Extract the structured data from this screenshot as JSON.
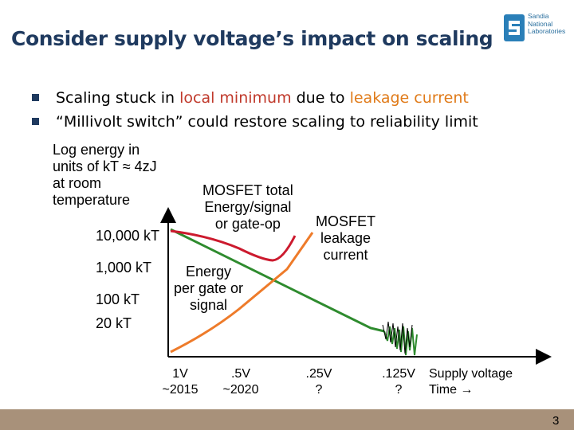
{
  "slide": {
    "title": "Consider supply voltage’s impact on scaling",
    "logo_text": [
      "Sandia",
      "National",
      "Laboratories"
    ],
    "page_number": "3"
  },
  "bullets": [
    {
      "pre": "Scaling stuck in ",
      "red": "local minimum",
      "mid": " due to ",
      "orange": "leakage current"
    },
    {
      "text": "“Millivolt switch” could restore scaling to reliability limit"
    }
  ],
  "chart_data": {
    "type": "line",
    "ylabel": [
      "Log energy in",
      "units of kT ≈ 4zJ",
      "at room",
      "temperature"
    ],
    "y_ticks": [
      "10,000 kT",
      "1,000 kT",
      "100 kT",
      "20 kT"
    ],
    "x_ticks": [
      {
        "top": "1V",
        "bottom": "~2015"
      },
      {
        "top": ".5V",
        "bottom": "~2020"
      },
      {
        "top": ".25V",
        "bottom": "?"
      },
      {
        "top": ".125V",
        "bottom": "?"
      }
    ],
    "xlabel": [
      "Supply voltage",
      "Time →"
    ],
    "series": [
      {
        "name": "MOSFET total Energy/signal or gate-op",
        "color": "#cc1a2e"
      },
      {
        "name": "Energy per gate or signal",
        "color": "#2e8b2e"
      },
      {
        "name": "MOSFET leakage current",
        "color": "#ee7b2a"
      }
    ],
    "annotations": {
      "total": [
        "MOSFET total",
        "Energy/signal",
        "or gate-op"
      ],
      "energy": [
        "Energy",
        "per gate or",
        "signal"
      ],
      "leakage": [
        "MOSFET",
        "leakage",
        "current"
      ]
    }
  }
}
